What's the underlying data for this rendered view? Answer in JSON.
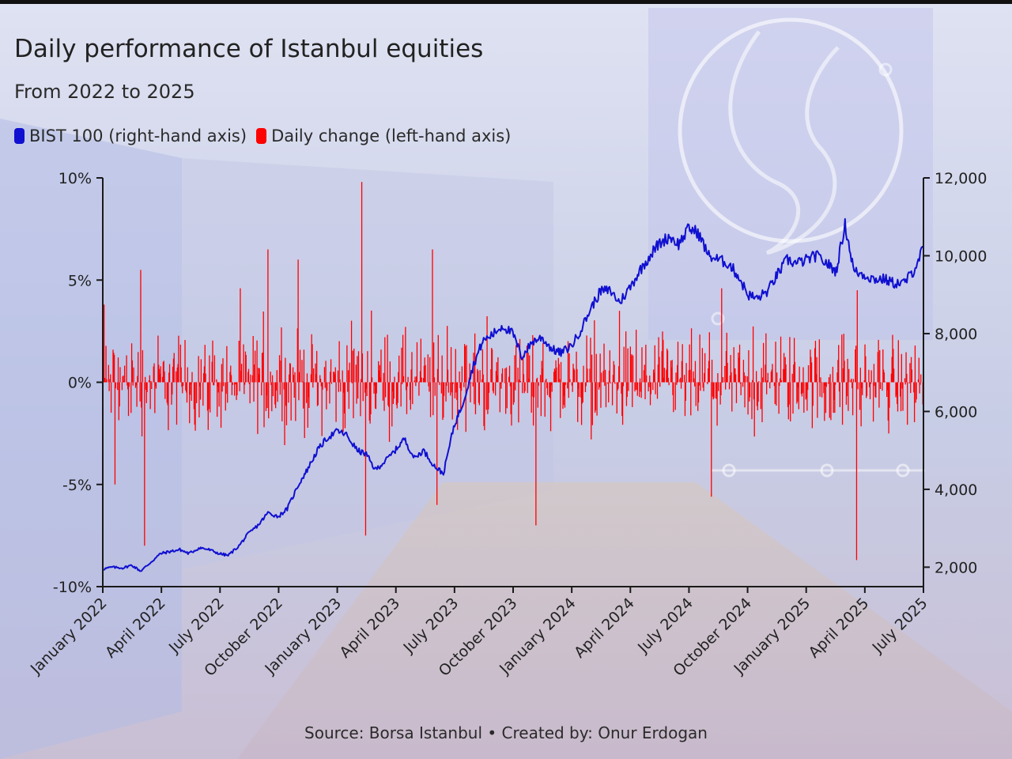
{
  "title": "Daily performance of Istanbul equities",
  "subtitle": "From 2022 to 2025",
  "source": "Source: Borsa Istanbul • Created by: Onur Erdogan",
  "colors": {
    "bist": "#1010d0",
    "change": "#ff0000",
    "axis": "#1a1a1a"
  },
  "chart_data": {
    "type": "line",
    "legend_placement": "top-left",
    "grid": false,
    "series": [
      {
        "name": "BIST 100 (right-hand axis)",
        "axis": "right",
        "type": "line",
        "color": "#1010d0"
      },
      {
        "name": "Daily change (left-hand axis)",
        "axis": "left",
        "type": "bar",
        "color": "#ff0000"
      }
    ],
    "x_ticks": [
      "January 2022",
      "April 2022",
      "July 2022",
      "October 2022",
      "January 2023",
      "April 2023",
      "July 2023",
      "October 2023",
      "January 2024",
      "April 2024",
      "July 2024",
      "October 2024",
      "January 2025",
      "April 2025",
      "July 2025"
    ],
    "x_range": [
      "2022-01-01",
      "2025-07-01"
    ],
    "left_axis": {
      "range": [
        -10,
        10
      ],
      "ticks": [
        "10%",
        "5%",
        "0%",
        "-5%",
        "-10%"
      ],
      "tick_values": [
        10,
        5,
        0,
        -5,
        -10
      ]
    },
    "right_axis": {
      "range": [
        1500,
        12000
      ],
      "ticks": [
        "12,000",
        "10,000",
        "8,000",
        "6,000",
        "4,000",
        "2,000"
      ],
      "tick_values": [
        12000,
        10000,
        8000,
        6000,
        4000,
        2000
      ]
    },
    "bist100": [
      [
        "2022-01-01",
        1950
      ],
      [
        "2022-01-15",
        2000
      ],
      [
        "2022-02-01",
        1980
      ],
      [
        "2022-02-15",
        2050
      ],
      [
        "2022-03-01",
        1900
      ],
      [
        "2022-03-15",
        2100
      ],
      [
        "2022-04-01",
        2350
      ],
      [
        "2022-04-15",
        2400
      ],
      [
        "2022-05-01",
        2450
      ],
      [
        "2022-05-15",
        2350
      ],
      [
        "2022-06-01",
        2500
      ],
      [
        "2022-06-15",
        2450
      ],
      [
        "2022-07-01",
        2350
      ],
      [
        "2022-07-15",
        2300
      ],
      [
        "2022-08-01",
        2550
      ],
      [
        "2022-08-15",
        2850
      ],
      [
        "2022-09-01",
        3100
      ],
      [
        "2022-09-15",
        3400
      ],
      [
        "2022-10-01",
        3300
      ],
      [
        "2022-10-15",
        3500
      ],
      [
        "2022-11-01",
        4100
      ],
      [
        "2022-11-15",
        4500
      ],
      [
        "2022-12-01",
        5000
      ],
      [
        "2022-12-15",
        5300
      ],
      [
        "2023-01-01",
        5500
      ],
      [
        "2023-01-15",
        5400
      ],
      [
        "2023-02-01",
        5000
      ],
      [
        "2023-02-15",
        4900
      ],
      [
        "2023-03-01",
        4500
      ],
      [
        "2023-03-15",
        4700
      ],
      [
        "2023-04-01",
        5000
      ],
      [
        "2023-04-15",
        5300
      ],
      [
        "2023-05-01",
        4800
      ],
      [
        "2023-05-15",
        5000
      ],
      [
        "2023-06-01",
        4600
      ],
      [
        "2023-06-15",
        4400
      ],
      [
        "2023-07-01",
        5600
      ],
      [
        "2023-07-15",
        6200
      ],
      [
        "2023-08-01",
        7200
      ],
      [
        "2023-08-15",
        7800
      ],
      [
        "2023-09-01",
        8000
      ],
      [
        "2023-09-15",
        8200
      ],
      [
        "2023-10-01",
        8000
      ],
      [
        "2023-10-15",
        7400
      ],
      [
        "2023-11-01",
        7800
      ],
      [
        "2023-11-15",
        7900
      ],
      [
        "2023-12-01",
        7600
      ],
      [
        "2023-12-15",
        7500
      ],
      [
        "2024-01-01",
        7700
      ],
      [
        "2024-01-15",
        8100
      ],
      [
        "2024-02-01",
        8700
      ],
      [
        "2024-02-15",
        9100
      ],
      [
        "2024-03-01",
        9100
      ],
      [
        "2024-03-15",
        8800
      ],
      [
        "2024-04-01",
        9200
      ],
      [
        "2024-04-15",
        9600
      ],
      [
        "2024-05-01",
        10000
      ],
      [
        "2024-05-15",
        10300
      ],
      [
        "2024-06-01",
        10500
      ],
      [
        "2024-06-15",
        10300
      ],
      [
        "2024-07-01",
        10700
      ],
      [
        "2024-07-15",
        10600
      ],
      [
        "2024-08-01",
        10000
      ],
      [
        "2024-08-15",
        9900
      ],
      [
        "2024-09-01",
        9800
      ],
      [
        "2024-09-15",
        9500
      ],
      [
        "2024-10-01",
        9000
      ],
      [
        "2024-10-15",
        8900
      ],
      [
        "2024-11-01",
        9100
      ],
      [
        "2024-11-15",
        9500
      ],
      [
        "2024-12-01",
        9900
      ],
      [
        "2024-12-15",
        9800
      ],
      [
        "2025-01-01",
        9900
      ],
      [
        "2025-01-15",
        10000
      ],
      [
        "2025-02-01",
        9800
      ],
      [
        "2025-02-15",
        9600
      ],
      [
        "2025-03-01",
        10800
      ],
      [
        "2025-03-15",
        9600
      ],
      [
        "2025-04-01",
        9500
      ],
      [
        "2025-04-15",
        9400
      ],
      [
        "2025-05-01",
        9400
      ],
      [
        "2025-05-15",
        9300
      ],
      [
        "2025-06-01",
        9300
      ],
      [
        "2025-06-15",
        9600
      ],
      [
        "2025-07-01",
        10200
      ]
    ],
    "daily_change_notable": [
      [
        "2022-01-03",
        3.8
      ],
      [
        "2022-01-20",
        -5.0
      ],
      [
        "2022-03-01",
        5.5
      ],
      [
        "2022-03-07",
        -8.0
      ],
      [
        "2022-09-15",
        6.5
      ],
      [
        "2022-11-01",
        6.0
      ],
      [
        "2023-02-08",
        9.8
      ],
      [
        "2023-02-14",
        -7.5
      ],
      [
        "2023-05-29",
        6.5
      ],
      [
        "2023-06-05",
        -6.0
      ],
      [
        "2023-11-06",
        -7.0
      ],
      [
        "2024-08-05",
        -5.6
      ],
      [
        "2025-03-19",
        -8.7
      ],
      [
        "2025-03-20",
        4.5
      ],
      [
        "2025-07-01",
        6.0
      ]
    ]
  }
}
